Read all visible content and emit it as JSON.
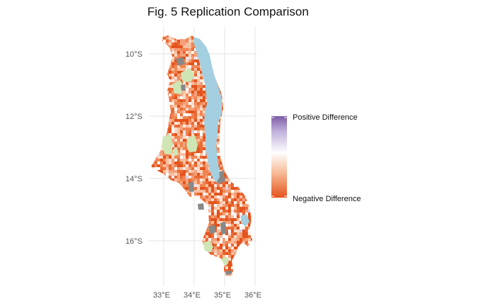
{
  "title": "Fig. 5 Replication Comparison",
  "axes": {
    "x_ticks": [
      "33°E",
      "34°E",
      "35°E",
      "36°E"
    ],
    "y_ticks": [
      "10°S",
      "12°S",
      "14°S",
      "16°S"
    ]
  },
  "legend": {
    "top_label": "Positive Difference",
    "bottom_label": "Negative Difference"
  },
  "colors": {
    "positive": "#7d5ba6",
    "neutral": "#ffffff",
    "negative": "#e4531c",
    "lake": "#a3cfe0",
    "protected_area": "#cfe6b4",
    "missing": "#888888",
    "grid": "#e8e8e8"
  }
}
